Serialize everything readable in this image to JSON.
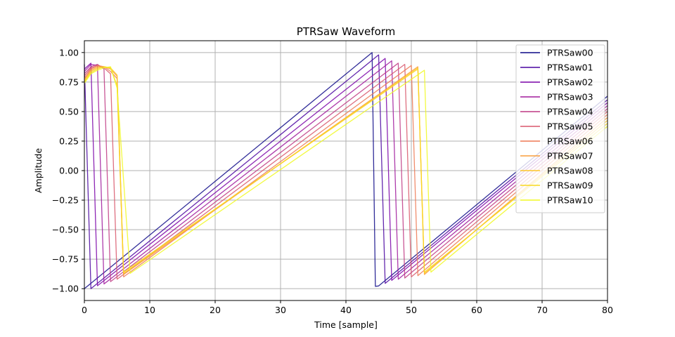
{
  "chart_data": {
    "type": "line",
    "title": "PTRSaw Waveform",
    "xlabel": "Time [sample]",
    "ylabel": "Amplitude",
    "xlim": [
      0,
      80
    ],
    "ylim": [
      -1.1,
      1.1
    ],
    "xticks": [
      0,
      10,
      20,
      30,
      40,
      50,
      60,
      70,
      80
    ],
    "xtick_labels": [
      "0",
      "10",
      "20",
      "30",
      "40",
      "50",
      "60",
      "70",
      "80"
    ],
    "yticks": [
      -1.0,
      -0.75,
      -0.5,
      -0.25,
      0.0,
      0.25,
      0.5,
      0.75,
      1.0
    ],
    "ytick_labels": [
      "−1.00",
      "−0.75",
      "−0.50",
      "−0.25",
      "0.00",
      "0.25",
      "0.50",
      "0.75",
      "1.00"
    ],
    "grid": true,
    "legend_position": "top-right",
    "series": [
      {
        "name": "PTRSaw00",
        "color": "#0d0887",
        "points": [
          [
            0,
            -1.0
          ],
          [
            44,
            1.0
          ],
          [
            44.5,
            -0.98
          ],
          [
            45,
            -0.977
          ],
          [
            80,
            0.63
          ]
        ]
      },
      {
        "name": "PTRSaw01",
        "color": "#4903a0",
        "points": [
          [
            0,
            0.9
          ],
          [
            1,
            -1.0
          ],
          [
            45,
            0.98
          ],
          [
            46,
            -0.955
          ],
          [
            80,
            0.6
          ]
        ]
      },
      {
        "name": "PTRSaw02",
        "color": "#7a02a8",
        "points": [
          [
            0,
            0.86
          ],
          [
            1,
            0.91
          ],
          [
            2,
            -0.975
          ],
          [
            46,
            0.95
          ],
          [
            47,
            -0.93
          ],
          [
            80,
            0.575
          ]
        ]
      },
      {
        "name": "PTRSaw03",
        "color": "#a01a9c",
        "points": [
          [
            0,
            0.84
          ],
          [
            1,
            0.9
          ],
          [
            2,
            0.89
          ],
          [
            3,
            -0.96
          ],
          [
            47,
            0.93
          ],
          [
            48,
            -0.92
          ],
          [
            80,
            0.55
          ]
        ]
      },
      {
        "name": "PTRSaw04",
        "color": "#bf3984",
        "points": [
          [
            0,
            0.82
          ],
          [
            1,
            0.88
          ],
          [
            2,
            0.9
          ],
          [
            3,
            0.86
          ],
          [
            4,
            -0.94
          ],
          [
            48,
            0.91
          ],
          [
            49,
            -0.91
          ],
          [
            80,
            0.525
          ]
        ]
      },
      {
        "name": "PTRSaw05",
        "color": "#d8576b",
        "points": [
          [
            0,
            0.8
          ],
          [
            1,
            0.87
          ],
          [
            2,
            0.89
          ],
          [
            3,
            0.87
          ],
          [
            4,
            0.82
          ],
          [
            5,
            -0.92
          ],
          [
            49,
            0.9
          ],
          [
            50,
            -0.9
          ],
          [
            80,
            0.5
          ]
        ]
      },
      {
        "name": "PTRSaw06",
        "color": "#ed7953",
        "points": [
          [
            0,
            0.78
          ],
          [
            1,
            0.86
          ],
          [
            2,
            0.89
          ],
          [
            3,
            0.88
          ],
          [
            4,
            0.84
          ],
          [
            5,
            0.78
          ],
          [
            6,
            -0.9
          ],
          [
            50,
            0.89
          ],
          [
            51,
            -0.89
          ],
          [
            80,
            0.475
          ]
        ]
      },
      {
        "name": "PTRSaw07",
        "color": "#fa9e3b",
        "points": [
          [
            0,
            0.77
          ],
          [
            1,
            0.85
          ],
          [
            2,
            0.88
          ],
          [
            3,
            0.88
          ],
          [
            4,
            0.86
          ],
          [
            5,
            0.8
          ],
          [
            6,
            -0.88
          ],
          [
            51,
            0.88
          ],
          [
            52,
            -0.88
          ],
          [
            80,
            0.45
          ]
        ]
      },
      {
        "name": "PTRSaw08",
        "color": "#fdc527",
        "points": [
          [
            0,
            0.76
          ],
          [
            1,
            0.84
          ],
          [
            2,
            0.87
          ],
          [
            3,
            0.88
          ],
          [
            4,
            0.87
          ],
          [
            5,
            0.81
          ],
          [
            6,
            -0.87
          ],
          [
            51,
            0.87
          ],
          [
            52,
            -0.87
          ],
          [
            80,
            0.425
          ]
        ]
      },
      {
        "name": "PTRSaw09",
        "color": "#f9d81f",
        "points": [
          [
            0,
            0.75
          ],
          [
            1,
            0.83
          ],
          [
            2,
            0.86
          ],
          [
            3,
            0.88
          ],
          [
            4,
            0.87
          ],
          [
            5,
            0.72
          ],
          [
            6,
            -0.86
          ],
          [
            51,
            0.86
          ],
          [
            52,
            -0.86
          ],
          [
            80,
            0.4
          ]
        ]
      },
      {
        "name": "PTRSaw10",
        "color": "#f0f921",
        "points": [
          [
            0,
            0.74
          ],
          [
            1,
            0.82
          ],
          [
            2,
            0.85
          ],
          [
            3,
            0.87
          ],
          [
            4,
            0.88
          ],
          [
            5,
            0.7
          ],
          [
            7,
            -0.87
          ],
          [
            52,
            0.85
          ],
          [
            53,
            -0.86
          ],
          [
            80,
            0.375
          ]
        ]
      }
    ]
  }
}
